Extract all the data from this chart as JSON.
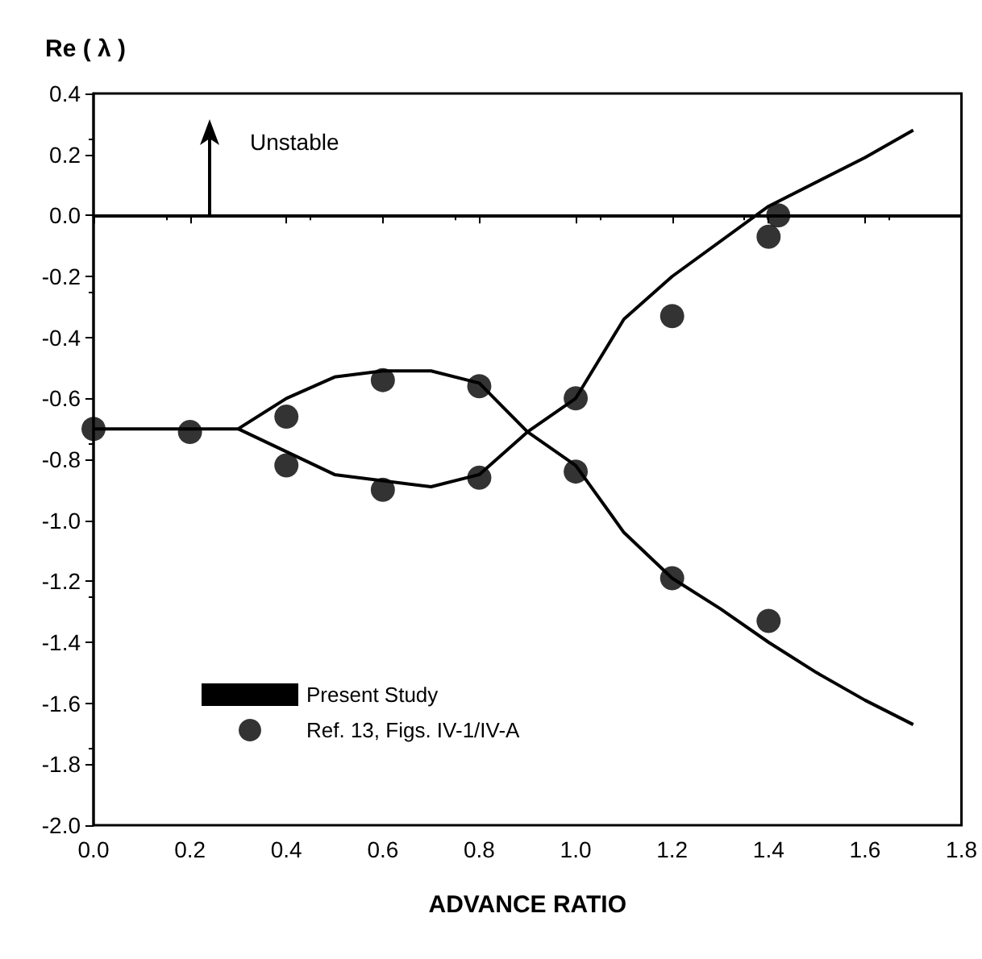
{
  "chart_data": {
    "type": "line",
    "xlabel": "ADVANCE RATIO",
    "ylabel": "Re ( λ )",
    "xlim": [
      0,
      1.8
    ],
    "xticks": [
      {
        "value": 0,
        "label": "0.0"
      },
      {
        "value": 0.2,
        "label": "0.2"
      },
      {
        "value": 0.4,
        "label": "0.4"
      },
      {
        "value": 0.6,
        "label": "0.6"
      },
      {
        "value": 0.8,
        "label": "0.8"
      },
      {
        "value": 1,
        "label": "1.0"
      },
      {
        "value": 1.2,
        "label": "1.2"
      },
      {
        "value": 1.4,
        "label": "1.4"
      },
      {
        "value": 1.6,
        "label": "1.6"
      },
      {
        "value": 1.8,
        "label": "1.8"
      }
    ],
    "ylim": [
      -2,
      0.4
    ],
    "yticks": [
      {
        "value": -2,
        "label": "-2.0"
      },
      {
        "value": -1.8,
        "label": "-1.8"
      },
      {
        "value": -1.6,
        "label": "-1.6"
      },
      {
        "value": -1.4,
        "label": "-1.4"
      },
      {
        "value": -1.2,
        "label": "-1.2"
      },
      {
        "value": -1,
        "label": "-1.0"
      },
      {
        "value": -0.8,
        "label": "-0.8"
      },
      {
        "value": -0.6,
        "label": "-0.6"
      },
      {
        "value": -0.4,
        "label": "-0.4"
      },
      {
        "value": -0.2,
        "label": "-0.2"
      },
      {
        "value": 0,
        "label": "0.0"
      },
      {
        "value": 0.2,
        "label": "0.2"
      },
      {
        "value": 0.4,
        "label": "0.4"
      }
    ],
    "series": [
      {
        "name": "Present Study",
        "color": "#000000",
        "marker": "none",
        "x": [
          0,
          0.3,
          0.4,
          0.5,
          0.6,
          0.7,
          0.8,
          0.9,
          1.0,
          1.1,
          1.2,
          1.3,
          1.4,
          1.5,
          1.6,
          1.7
        ],
        "values": [
          -0.7,
          -0.7,
          -0.6,
          -0.53,
          -0.51,
          -0.51,
          -0.55,
          -0.71,
          -0.82,
          -1.04,
          -1.19,
          -1.29,
          -1.4,
          -1.5,
          -1.59,
          -1.67
        ]
      },
      {
        "color": "#000000",
        "marker": "none",
        "x": [
          0.3,
          0.5,
          0.7,
          0.8,
          0.9,
          1.0,
          1.1,
          1.2,
          1.4,
          1.6,
          1.7
        ],
        "values": [
          -0.7,
          -0.85,
          -0.89,
          -0.85,
          -0.71,
          -0.6,
          -0.34,
          -0.2,
          0.03,
          0.19,
          0.28
        ]
      },
      {
        "name": "Ref. 13, Figs. IV-1/IV-A",
        "type": "scatter",
        "color": "#000000",
        "marker": "circle",
        "x": [
          0,
          0.2,
          0.4,
          0.4,
          0.6,
          0.6,
          0.8,
          0.8,
          1.0,
          1.0,
          1.2,
          1.2,
          1.4,
          1.4,
          1.42
        ],
        "values": [
          -0.7,
          -0.71,
          -0.66,
          -0.82,
          -0.54,
          -0.9,
          -0.56,
          -0.86,
          -0.6,
          -0.84,
          -0.33,
          -1.19,
          -1.33,
          -0.07,
          0.0
        ]
      }
    ],
    "ref_lines": [
      {
        "axis": "y",
        "value": 0,
        "color": "#000000"
      }
    ],
    "annotations": [
      "Unstable"
    ],
    "legend": "bottom left",
    "grid": false
  }
}
